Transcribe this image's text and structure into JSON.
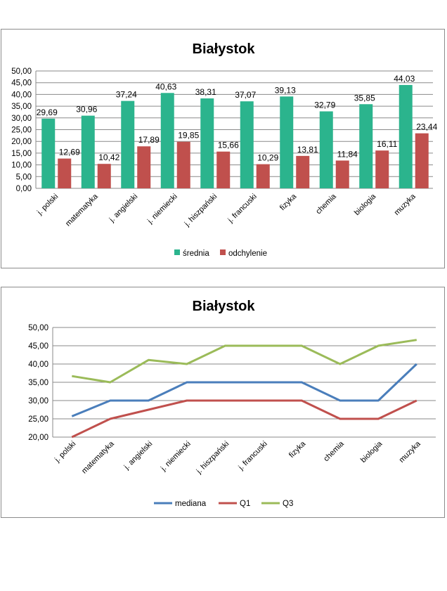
{
  "chart_data": [
    {
      "type": "bar",
      "title": "Białystok",
      "categories": [
        "j. polski",
        "matematyka",
        "j. angielski",
        "j. niemiecki",
        "j. hiszpański",
        "j. francuski",
        "fizyka",
        "chemia",
        "biologia",
        "muzyka"
      ],
      "series": [
        {
          "name": "średnia",
          "color": "#2bb48d",
          "values": [
            29.69,
            30.96,
            37.24,
            40.63,
            38.31,
            37.07,
            39.13,
            32.79,
            35.85,
            44.03
          ],
          "labels": [
            "29,69",
            "30,96",
            "37,24",
            "40,63",
            "38,31",
            "37,07",
            "39,13",
            "32,79",
            "35,85",
            "44,03"
          ]
        },
        {
          "name": "odchylenie",
          "color": "#c0504d",
          "values": [
            12.69,
            10.42,
            17.89,
            19.85,
            15.66,
            10.29,
            13.81,
            11.84,
            16.11,
            23.44
          ],
          "labels": [
            "12,69",
            "10,42",
            "17,89",
            "19,85",
            "15,66",
            "10,29",
            "13,81",
            "11,84",
            "16,11",
            "23,44"
          ]
        }
      ],
      "ylim": [
        0,
        50
      ],
      "yticks": [
        "0,00",
        "5,00",
        "10,00",
        "15,00",
        "20,00",
        "25,00",
        "30,00",
        "35,00",
        "40,00",
        "45,00",
        "50,00"
      ],
      "grid": true,
      "legend": "bottom"
    },
    {
      "type": "line",
      "title": "Białystok",
      "categories": [
        "j. polski",
        "matematyka",
        "j. angielski",
        "j. niemiecki",
        "j. hiszpański",
        "j. francuski",
        "fizyka",
        "chemia",
        "biologia",
        "muzyka"
      ],
      "series": [
        {
          "name": "mediana",
          "color": "#4a7ebb",
          "values": [
            25.7,
            30,
            30,
            35,
            35,
            35,
            35,
            30,
            30,
            40
          ]
        },
        {
          "name": "Q1",
          "color": "#c0504d",
          "values": [
            20,
            25,
            27.5,
            30,
            30,
            30,
            30,
            25,
            25,
            30
          ]
        },
        {
          "name": "Q3",
          "color": "#9bbb59",
          "values": [
            36.7,
            35,
            41.1,
            40,
            45,
            45,
            45,
            40,
            45,
            46.6
          ]
        }
      ],
      "ylim": [
        20,
        50
      ],
      "yticks": [
        "20,00",
        "25,00",
        "30,00",
        "35,00",
        "40,00",
        "45,00",
        "50,00"
      ],
      "grid": true,
      "legend": "bottom"
    }
  ]
}
